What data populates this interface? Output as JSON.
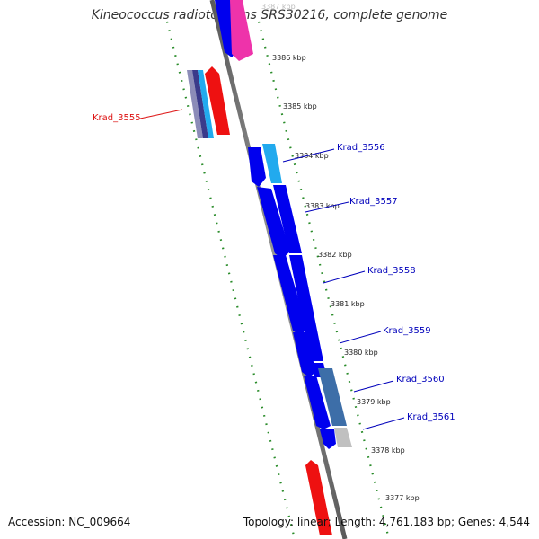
{
  "title": "Kineococcus radiotolerans SRS30216, complete genome",
  "footer": {
    "accession": "Accession: NC_009664",
    "topology": "Topology: linear; Length: 4,761,183 bp; Genes: 4,544"
  },
  "colors": {
    "backbone": "#7a7a7a",
    "ruler": "#2a8c2a",
    "forward_gene": "#0000ee",
    "selected_label": "#dd1111",
    "gene_label": "#0000bb"
  },
  "ruler_labels": [
    {
      "text": "3387 kbp",
      "faded": true
    },
    {
      "text": "3386 kbp"
    },
    {
      "text": "3385 kbp"
    },
    {
      "text": "3384 kbp"
    },
    {
      "text": "3383 kbp"
    },
    {
      "text": "3382 kbp"
    },
    {
      "text": "3381 kbp"
    },
    {
      "text": "3380 kbp"
    },
    {
      "text": "3379 kbp"
    },
    {
      "text": "3378 kbp"
    },
    {
      "text": "3377 kbp"
    }
  ],
  "gene_labels": [
    {
      "text": "Krad_3555",
      "color": "#dd1111"
    },
    {
      "text": "Krad_3556",
      "color": "#0000bb"
    },
    {
      "text": "Krad_3557",
      "color": "#0000bb"
    },
    {
      "text": "Krad_3558",
      "color": "#0000bb"
    },
    {
      "text": "Krad_3559",
      "color": "#0000bb"
    },
    {
      "text": "Krad_3560",
      "color": "#0000bb"
    },
    {
      "text": "Krad_3561",
      "color": "#0000bb"
    }
  ]
}
